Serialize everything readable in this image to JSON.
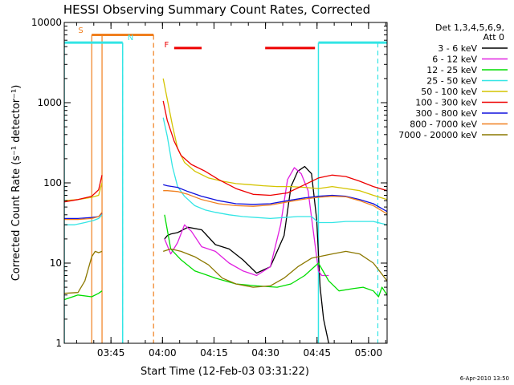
{
  "chart_data": {
    "type": "line",
    "title": "HESSI Observing Summary Count Rates, Corrected",
    "xlabel": "Start Time (12-Feb-03 03:31:22)",
    "ylabel": "Corrected Count Rate (s⁻¹ detector⁻¹)",
    "footer": "6-Apr-2010 13:50",
    "x_unit": "minutes after 03:31:22",
    "xlim": [
      0,
      94
    ],
    "ylim": [
      1,
      10000
    ],
    "yscale": "log",
    "x_tick_labels": [
      {
        "label": "03:45",
        "x": 13.6
      },
      {
        "label": "04:00",
        "x": 28.6
      },
      {
        "label": "04:15",
        "x": 43.6
      },
      {
        "label": "04:30",
        "x": 58.6
      },
      {
        "label": "04:45",
        "x": 73.6
      },
      {
        "label": "05:00",
        "x": 88.6
      }
    ],
    "y_tick_labels": [
      {
        "label": "1",
        "y": 1
      },
      {
        "label": "10",
        "y": 10
      },
      {
        "label": "100",
        "y": 100
      },
      {
        "label": "1000",
        "y": 1000
      },
      {
        "label": "10000",
        "y": 10000
      }
    ],
    "legend": {
      "header1": "Det 1,3,4,5,6,9,",
      "header2": "Att 0"
    },
    "annotations": [
      {
        "text": "S",
        "x": 4.8,
        "y": 7400,
        "color": "#f07f1e"
      },
      {
        "text": "N",
        "x": 19.3,
        "y": 6000,
        "color": "#33e5e5"
      },
      {
        "text": "F",
        "x": 29.8,
        "y": 4900,
        "color": "#ee0000"
      }
    ],
    "markers": {
      "saa": {
        "color": "#f07f1e",
        "level": 7000,
        "segments": [
          [
            8,
            26
          ]
        ],
        "vlines": [
          8,
          11,
          26
        ]
      },
      "night": {
        "color": "#33e5e5",
        "level": 5600,
        "segments": [
          [
            0,
            17
          ],
          [
            74,
            94
          ]
        ],
        "vlines_solid": [
          0,
          17,
          74
        ],
        "vlines_dashed": [
          17,
          91.3
        ]
      },
      "flare": {
        "color": "#ee0000",
        "level": 4800,
        "segments": [
          [
            32,
            40
          ],
          [
            58.5,
            73
          ]
        ]
      }
    },
    "series": [
      {
        "name": "3 - 6 keV",
        "color": "#000000",
        "x": [
          0,
          8,
          11,
          11.5,
          28.5,
          29.2,
          30,
          31,
          33,
          36,
          40,
          44,
          48,
          52,
          56,
          60,
          64,
          66,
          68,
          70,
          72,
          73.5,
          74.5,
          75.5,
          77
        ],
        "y": [
          null,
          null,
          null,
          null,
          null,
          20,
          22,
          23,
          24,
          28,
          26,
          17,
          15,
          11,
          7.5,
          9,
          22,
          90,
          140,
          160,
          130,
          35,
          5,
          2,
          1
        ]
      },
      {
        "name": "6 - 12 keV",
        "color": "#e020e0",
        "x": [
          28.5,
          29.2,
          31,
          33,
          35,
          37,
          40,
          44,
          48,
          52,
          56,
          60,
          63,
          65,
          67,
          69,
          71,
          72.5,
          74,
          75,
          77
        ],
        "y": [
          null,
          20,
          13,
          18,
          30,
          25,
          16,
          14,
          10,
          8,
          7,
          9,
          30,
          110,
          155,
          130,
          80,
          25,
          8,
          7,
          7
        ]
      },
      {
        "name": "12 - 25 keV",
        "color": "#00dd00",
        "x": [
          0,
          4,
          8,
          10,
          11,
          11.5,
          28.5,
          29.2,
          31,
          34,
          38,
          44,
          50,
          56,
          62,
          66,
          70,
          74,
          77,
          80,
          84,
          87,
          90,
          91.5,
          92.5,
          94
        ],
        "y": [
          3.5,
          4,
          3.8,
          4.2,
          4.5,
          null,
          null,
          40,
          15,
          11,
          8,
          6.5,
          5.5,
          5.2,
          5,
          5.5,
          7,
          10,
          6,
          4.5,
          4.8,
          5,
          4.5,
          3.8,
          5,
          4
        ]
      },
      {
        "name": "25 - 50 keV",
        "color": "#33e5e5",
        "x": [
          0,
          3,
          6,
          8.5,
          10,
          11,
          11.5,
          28.5,
          28.8,
          30,
          31.5,
          33,
          35,
          38,
          41,
          44,
          48,
          52,
          56,
          60,
          64,
          68,
          72,
          74,
          78,
          82,
          86,
          90,
          94
        ],
        "y": [
          30,
          30,
          32,
          34,
          36,
          40,
          null,
          null,
          650,
          380,
          160,
          90,
          68,
          52,
          46,
          43,
          40,
          38,
          37,
          36,
          37,
          38,
          38,
          32,
          32,
          33,
          33,
          33,
          30
        ]
      },
      {
        "name": "50 - 100 keV",
        "color": "#d4c400",
        "x": [
          0,
          4,
          8,
          10,
          11,
          11.5,
          28.5,
          28.8,
          30,
          31.5,
          33,
          35,
          38,
          42,
          46,
          50,
          54,
          58,
          62,
          66,
          70,
          74,
          78,
          82,
          86,
          90,
          94
        ],
        "y": [
          60,
          62,
          66,
          70,
          100,
          null,
          null,
          2000,
          1100,
          520,
          270,
          180,
          140,
          115,
          105,
          98,
          95,
          92,
          90,
          90,
          88,
          85,
          90,
          85,
          80,
          70,
          62
        ]
      },
      {
        "name": "100 - 300 keV",
        "color": "#ee0000",
        "x": [
          0,
          4,
          8,
          10,
          11,
          11.5,
          28.5,
          28.8,
          30,
          32,
          34,
          37,
          41,
          45,
          50,
          55,
          60,
          65,
          70,
          74,
          78,
          82,
          86,
          90,
          94
        ],
        "y": [
          58,
          62,
          68,
          82,
          125,
          null,
          null,
          1050,
          600,
          330,
          220,
          170,
          140,
          110,
          85,
          72,
          70,
          75,
          95,
          115,
          125,
          120,
          105,
          90,
          80
        ]
      },
      {
        "name": "300 - 800 keV",
        "color": "#1010dd",
        "x": [
          0,
          4,
          8,
          10,
          11,
          11.5,
          28.5,
          28.8,
          30,
          33,
          36,
          40,
          45,
          50,
          55,
          60,
          65,
          70,
          74,
          78,
          82,
          86,
          90,
          94
        ],
        "y": [
          36,
          36,
          37,
          38,
          42,
          null,
          null,
          95,
          92,
          88,
          78,
          68,
          60,
          55,
          54,
          55,
          60,
          65,
          68,
          70,
          68,
          62,
          55,
          44
        ]
      },
      {
        "name": "800 - 7000 keV",
        "color": "#f07f1e",
        "x": [
          0,
          4,
          8,
          10,
          11,
          11.5,
          28.5,
          28.8,
          30,
          33,
          36,
          40,
          45,
          50,
          55,
          60,
          65,
          70,
          74,
          78,
          82,
          86,
          90,
          94
        ],
        "y": [
          35,
          35,
          36,
          38,
          43,
          null,
          null,
          80,
          80,
          78,
          72,
          62,
          55,
          52,
          51,
          53,
          58,
          63,
          66,
          68,
          67,
          60,
          52,
          41
        ]
      },
      {
        "name": "7000 - 20000 keV",
        "color": "#8c7800",
        "x": [
          0,
          4,
          6,
          8,
          9,
          10,
          11,
          11.5,
          28.5,
          28.8,
          31,
          34,
          38,
          42,
          46,
          50,
          55,
          60,
          64,
          68,
          72,
          74,
          78,
          82,
          86,
          90,
          94
        ],
        "y": [
          4.2,
          4.3,
          6,
          12,
          14,
          13.5,
          14,
          null,
          null,
          14,
          15,
          14,
          12,
          9.5,
          6.5,
          5.5,
          5,
          5.2,
          6.5,
          9,
          11.5,
          12,
          13,
          14,
          13,
          10,
          6
        ]
      }
    ]
  }
}
